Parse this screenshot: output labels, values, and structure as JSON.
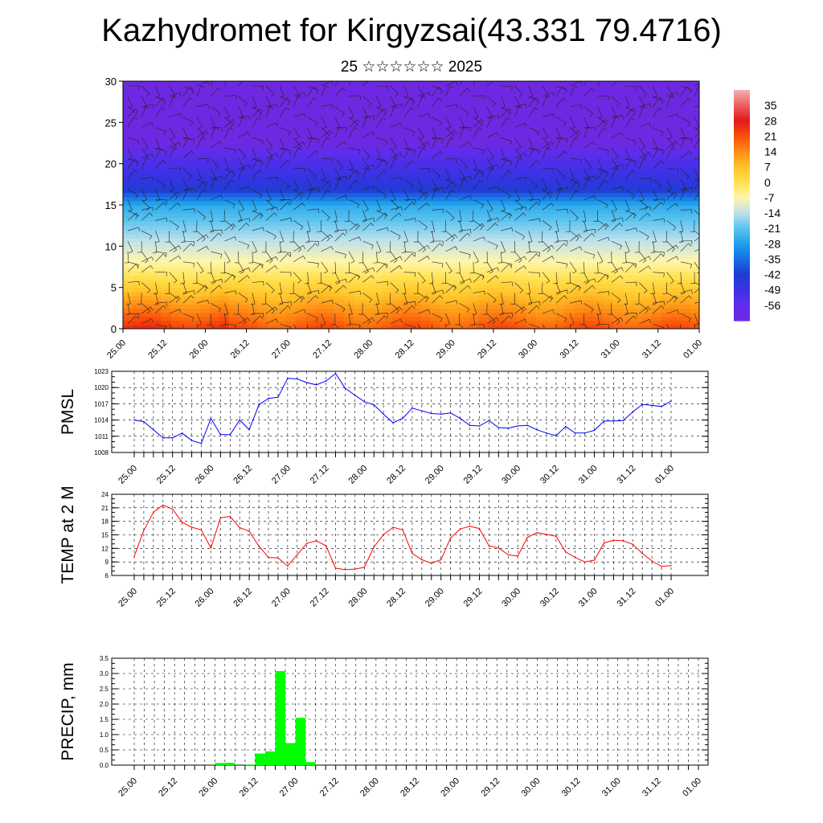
{
  "title": "Kazhydromet for Kirgyzsai(43.331 79.4716)",
  "subtitle": "25 ☆☆☆☆☆☆ 2025",
  "time_tick_labels": [
    "25.00",
    "25.12",
    "26.00",
    "26.12",
    "27.00",
    "27.12",
    "28.00",
    "28.12",
    "29.00",
    "29.12",
    "30.00",
    "30.12",
    "31.00",
    "31.12",
    "01.00"
  ],
  "colors": {
    "pmsl_line": "#0000ff",
    "temp_line": "#ff0000",
    "precip_bar": "#00ff00"
  },
  "chart_data": [
    {
      "type": "heatmap",
      "title": "",
      "y_range": [
        0,
        30
      ],
      "y_ticks": [
        "0",
        "5",
        "10",
        "15",
        "20",
        "25",
        "30"
      ],
      "x_ticks": [
        "25.00",
        "25.12",
        "26.00",
        "26.12",
        "27.00",
        "27.12",
        "28.00",
        "28.12",
        "29.00",
        "29.12",
        "30.00",
        "30.12",
        "31.00",
        "31.12",
        "01.00"
      ],
      "colorbar_labels": [
        "35",
        "28",
        "21",
        "14",
        "7",
        "0",
        "-7",
        "-14",
        "-21",
        "-28",
        "-35",
        "-42",
        "-49",
        "-56"
      ],
      "colorbar_range": [
        -63,
        42
      ],
      "overlay": "wind barbs"
    },
    {
      "type": "line",
      "ylabel": "PMSL",
      "ylim": [
        1008,
        1023
      ],
      "y_ticks": [
        "1008",
        "1011",
        "1014",
        "1017",
        "1020",
        "1023"
      ],
      "grid": true,
      "x": [
        "25.00",
        "25.03",
        "25.06",
        "25.09",
        "25.12",
        "25.15",
        "25.18",
        "25.21",
        "26.00",
        "26.03",
        "26.06",
        "26.09",
        "26.12",
        "26.15",
        "26.18",
        "26.21",
        "27.00",
        "27.03",
        "27.06",
        "27.09",
        "27.12",
        "27.15",
        "27.18",
        "27.21",
        "28.00",
        "28.03",
        "28.06",
        "28.09",
        "28.12",
        "28.15",
        "28.18",
        "28.21",
        "29.00",
        "29.03",
        "29.06",
        "29.09",
        "29.12",
        "29.15",
        "29.18",
        "29.21",
        "30.00",
        "30.03",
        "30.06",
        "30.09",
        "30.12",
        "30.15",
        "30.18",
        "30.21",
        "31.00",
        "31.03",
        "31.06",
        "31.09",
        "31.12",
        "31.15",
        "31.18",
        "31.21",
        "01.00"
      ],
      "values": [
        1014.0,
        1013.7,
        1012.2,
        1010.7,
        1010.7,
        1011.6,
        1010.2,
        1009.7,
        1014.3,
        1011.3,
        1011.3,
        1014.0,
        1012.2,
        1016.8,
        1018.0,
        1018.2,
        1021.7,
        1021.6,
        1020.9,
        1020.5,
        1021.2,
        1022.6,
        1019.9,
        1018.6,
        1017.4,
        1016.8,
        1015.1,
        1013.5,
        1014.3,
        1016.2,
        1015.7,
        1015.2,
        1015.1,
        1015.3,
        1014.3,
        1013.0,
        1012.9,
        1013.9,
        1012.6,
        1012.5,
        1012.9,
        1013.0,
        1012.2,
        1011.6,
        1011.1,
        1012.8,
        1011.6,
        1011.6,
        1012.1,
        1013.8,
        1013.8,
        1013.9,
        1015.5,
        1016.9,
        1016.7,
        1016.5,
        1017.5
      ]
    },
    {
      "type": "line",
      "ylabel": "TEMP at 2 M",
      "ylim": [
        6,
        24
      ],
      "y_ticks": [
        "6",
        "9",
        "12",
        "15",
        "18",
        "21",
        "24"
      ],
      "grid": true,
      "x": [
        "25.00",
        "25.03",
        "25.06",
        "25.09",
        "25.12",
        "25.15",
        "25.18",
        "25.21",
        "26.00",
        "26.03",
        "26.06",
        "26.09",
        "26.12",
        "26.15",
        "26.18",
        "26.21",
        "27.00",
        "27.03",
        "27.06",
        "27.09",
        "27.12",
        "27.15",
        "27.18",
        "27.21",
        "28.00",
        "28.03",
        "28.06",
        "28.09",
        "28.12",
        "28.15",
        "28.18",
        "28.21",
        "29.00",
        "29.03",
        "29.06",
        "29.09",
        "29.12",
        "29.15",
        "29.18",
        "29.21",
        "30.00",
        "30.03",
        "30.06",
        "30.09",
        "30.12",
        "30.15",
        "30.18",
        "30.21",
        "31.00",
        "31.03",
        "31.06",
        "31.09",
        "31.12",
        "31.15",
        "31.18",
        "31.21",
        "01.00"
      ],
      "values": [
        10.2,
        16.0,
        20.0,
        21.6,
        20.7,
        17.8,
        16.7,
        16.1,
        12.1,
        18.8,
        19.1,
        16.6,
        15.8,
        12.5,
        10.0,
        9.9,
        8.1,
        10.6,
        13.1,
        13.7,
        12.6,
        7.6,
        7.3,
        7.4,
        7.8,
        12.3,
        15.0,
        16.7,
        16.1,
        10.9,
        9.5,
        8.7,
        9.5,
        14.3,
        16.3,
        16.9,
        16.4,
        12.6,
        12.1,
        10.6,
        10.3,
        14.4,
        15.5,
        15.1,
        14.7,
        11.2,
        10.0,
        9.0,
        9.4,
        13.2,
        13.8,
        13.7,
        12.9,
        10.9,
        9.2,
        8.0,
        8.2
      ]
    },
    {
      "type": "bar",
      "ylabel": "PRECIP, mm",
      "ylim": [
        0,
        3.5
      ],
      "y_ticks": [
        "0.0",
        "0.5",
        "1.0",
        "1.5",
        "2.0",
        "2.5",
        "3.0",
        "3.5"
      ],
      "grid": true,
      "x": [
        "25.00",
        "25.03",
        "25.06",
        "25.09",
        "25.12",
        "25.15",
        "25.18",
        "25.21",
        "26.00",
        "26.03",
        "26.06",
        "26.09",
        "26.12",
        "26.15",
        "26.18",
        "26.21",
        "27.00",
        "27.03",
        "27.06",
        "27.09",
        "27.12",
        "27.15",
        "27.18",
        "27.21",
        "28.00",
        "28.03",
        "28.06",
        "28.09",
        "28.12",
        "28.15",
        "28.18",
        "28.21",
        "29.00",
        "29.03",
        "29.06",
        "29.09",
        "29.12",
        "29.15",
        "29.18",
        "29.21",
        "30.00",
        "30.03",
        "30.06",
        "30.09",
        "30.12",
        "30.15",
        "30.18",
        "30.21",
        "31.00",
        "31.03",
        "31.06",
        "31.09",
        "31.12",
        "31.15",
        "31.18",
        "31.21",
        "01.00"
      ],
      "values": [
        0,
        0,
        0,
        0,
        0,
        0,
        0,
        0,
        0.07,
        0.08,
        0,
        0.02,
        0.38,
        0.45,
        3.08,
        0.72,
        1.55,
        0.1,
        0,
        0,
        0,
        0,
        0,
        0,
        0,
        0,
        0,
        0,
        0,
        0,
        0,
        0,
        0,
        0,
        0,
        0,
        0,
        0,
        0,
        0,
        0,
        0,
        0,
        0,
        0,
        0,
        0,
        0,
        0,
        0,
        0,
        0,
        0,
        0,
        0,
        0,
        0
      ]
    }
  ]
}
